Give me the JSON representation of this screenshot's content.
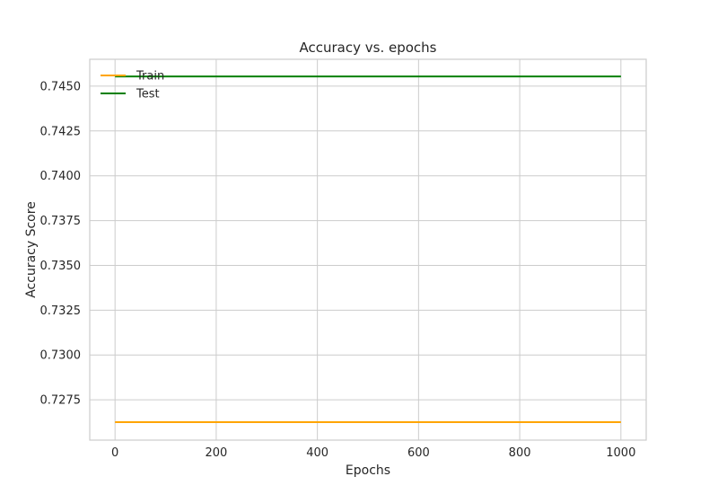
{
  "chart_data": {
    "type": "line",
    "title": "Accuracy vs. epochs",
    "xlabel": "Epochs",
    "ylabel": "Accuracy Score",
    "xlim": [
      -50,
      1050
    ],
    "ylim": [
      0.72525,
      0.7465
    ],
    "xticks": [
      0,
      200,
      400,
      600,
      800,
      1000
    ],
    "xtick_labels": [
      "0",
      "200",
      "400",
      "600",
      "800",
      "1000"
    ],
    "yticks": [
      0.7275,
      0.73,
      0.7325,
      0.735,
      0.7375,
      0.74,
      0.7425,
      0.745
    ],
    "ytick_labels": [
      "0.7275",
      "0.7300",
      "0.7325",
      "0.7350",
      "0.7375",
      "0.7400",
      "0.7425",
      "0.7450"
    ],
    "grid": true,
    "legend": {
      "position": "top-left"
    },
    "series": [
      {
        "name": "Train",
        "color": "#ffa500",
        "x": [
          0,
          1000
        ],
        "y": [
          0.72625,
          0.72625
        ]
      },
      {
        "name": "Test",
        "color": "#008000",
        "x": [
          0,
          1000
        ],
        "y": [
          0.74554,
          0.74554
        ]
      }
    ]
  }
}
